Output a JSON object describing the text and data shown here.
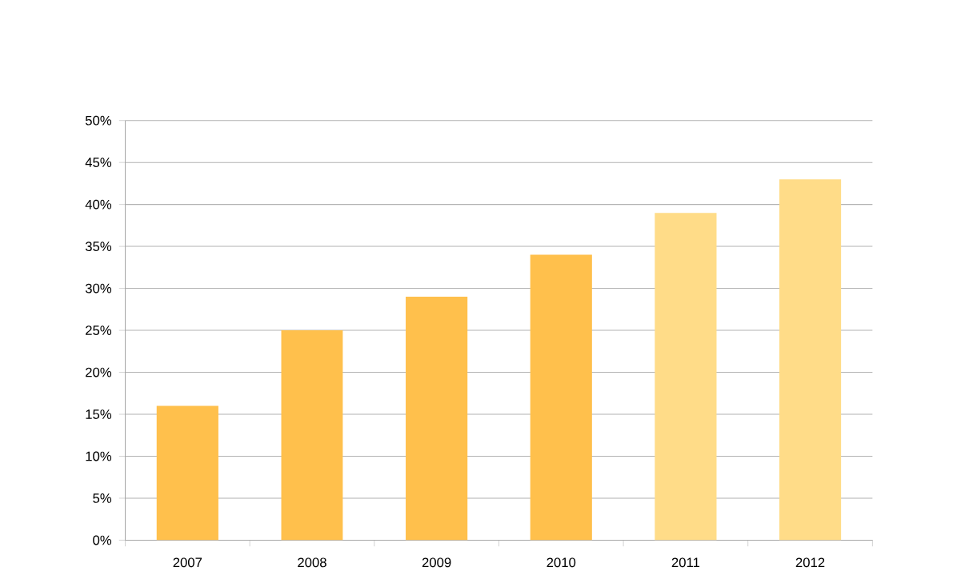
{
  "chart_data": {
    "type": "bar",
    "categories": [
      "2007",
      "2008",
      "2009",
      "2010",
      "2011",
      "2012"
    ],
    "values": [
      16,
      25,
      29,
      34,
      39,
      43
    ],
    "colors": [
      "#ffc04c",
      "#ffc04c",
      "#ffc04c",
      "#ffc04c",
      "#ffdc88",
      "#ffdc88"
    ],
    "ylim": [
      0,
      50
    ],
    "yticks": [
      {
        "value": 0,
        "label": "0%"
      },
      {
        "value": 5,
        "label": "5%"
      },
      {
        "value": 10,
        "label": "10%"
      },
      {
        "value": 15,
        "label": "15%"
      },
      {
        "value": 20,
        "label": "20%"
      },
      {
        "value": 25,
        "label": "25%"
      },
      {
        "value": 30,
        "label": "30%"
      },
      {
        "value": 35,
        "label": "35%"
      },
      {
        "value": 40,
        "label": "40%"
      },
      {
        "value": 45,
        "label": "45%"
      },
      {
        "value": 50,
        "label": "50%"
      }
    ],
    "grid": "y"
  }
}
